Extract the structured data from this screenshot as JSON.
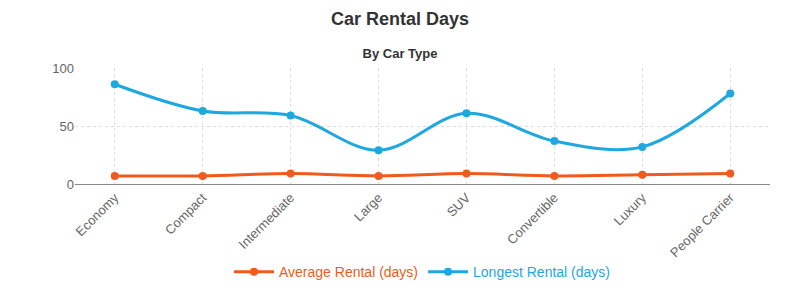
{
  "chart_data": {
    "type": "line",
    "title": "Car Rental Days",
    "subtitle": "By Car Type",
    "categories": [
      "Economy",
      "Compact",
      "Intermediate",
      "Large",
      "SUV",
      "Convertible",
      "Luxury",
      "People Carrier"
    ],
    "series": [
      {
        "name": "Average Rental (days)",
        "color": "#f05a1e",
        "values": [
          7,
          7,
          9,
          7,
          9,
          7,
          8,
          9
        ]
      },
      {
        "name": "Longest Rental (days)",
        "color": "#1ea8e0",
        "values": [
          86,
          63,
          59,
          29,
          61,
          37,
          32,
          78
        ]
      }
    ],
    "ylim": [
      0,
      100
    ],
    "yticks": [
      0,
      50,
      100
    ],
    "grid": true,
    "legend": "bottom",
    "marker": "circle",
    "line_style": "smooth"
  }
}
